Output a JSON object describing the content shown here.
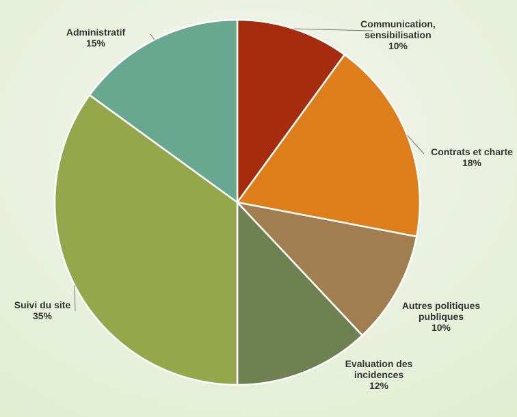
{
  "chart_data": {
    "type": "pie",
    "title": "",
    "slices": [
      {
        "label_lines": [
          "Communication,",
          "sensibilisation"
        ],
        "value": 10,
        "value_label": "10%",
        "color": "#a52c0e"
      },
      {
        "label_lines": [
          "Contrats et charte"
        ],
        "value": 18,
        "value_label": "18%",
        "color": "#dd7e1a"
      },
      {
        "label_lines": [
          "Autres politiques",
          "publiques"
        ],
        "value": 10,
        "value_label": "10%",
        "color": "#a07e4f"
      },
      {
        "label_lines": [
          "Evaluation des",
          "incidences"
        ],
        "value": 12,
        "value_label": "12%",
        "color": "#6f8150"
      },
      {
        "label_lines": [
          "Suivi du site"
        ],
        "value": 35,
        "value_label": "35%",
        "color": "#94a74b"
      },
      {
        "label_lines": [
          "Administratif"
        ],
        "value": 15,
        "value_label": "15%",
        "color": "#68a890"
      }
    ],
    "start_angle_deg": 0,
    "direction": "clockwise",
    "background": {
      "top": "#f4f5f1",
      "bottom": "#e1eed0"
    }
  }
}
